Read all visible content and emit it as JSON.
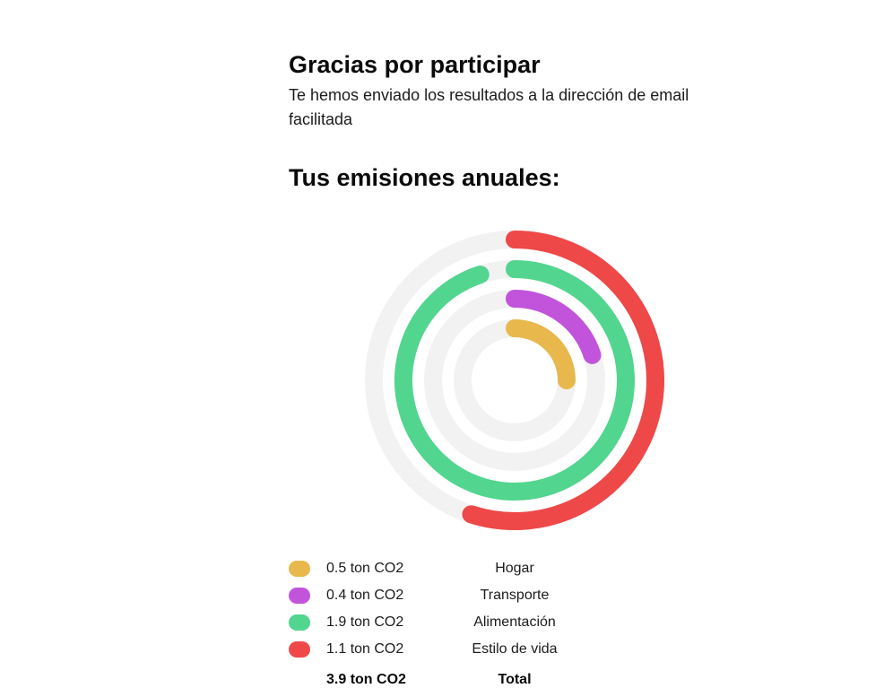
{
  "header": {
    "title": "Gracias por participar",
    "subtitle": "Te hemos enviado los resultados a la dirección de email facilitada"
  },
  "emissions": {
    "title": "Tus emisiones anuales:"
  },
  "chart_data": {
    "type": "radial-bar",
    "series": [
      {
        "name": "Hogar",
        "value": 0.5,
        "value_label": "0.5 ton CO2",
        "color": "#E9B84D"
      },
      {
        "name": "Transporte",
        "value": 0.4,
        "value_label": "0.4 ton CO2",
        "color": "#C254DC"
      },
      {
        "name": "Alimentación",
        "value": 1.9,
        "value_label": "1.9 ton CO2",
        "color": "#52D58E"
      },
      {
        "name": "Estilo de vida",
        "value": 1.1,
        "value_label": "1.1 ton CO2",
        "color": "#EE4848"
      }
    ],
    "total": {
      "value": 3.9,
      "value_label": "3.9 ton CO2",
      "label": "Total"
    },
    "track_color": "#F2F2F2"
  }
}
